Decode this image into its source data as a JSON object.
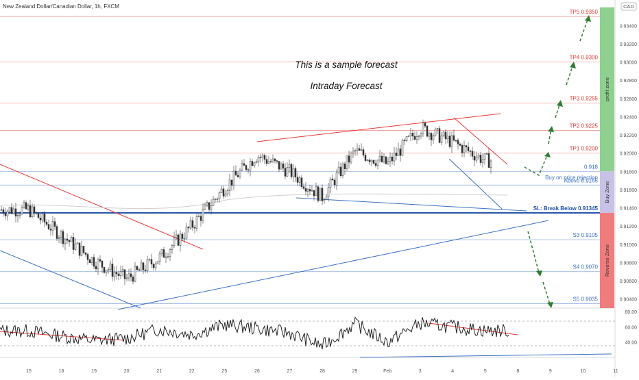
{
  "header": {
    "symbol_title": "New Zealand Dollar/Canadian Dollar, 1h, FXCM",
    "currency_badge": "CAD"
  },
  "annotations": {
    "sample_forecast": "This is a sample forecast",
    "intraday_forecast": "Intraday Forecast",
    "buy_on_rejection": "Buy on price rejection"
  },
  "levels": [
    {
      "label": "TP5 0.9350",
      "value": 0.935,
      "color": "#e53935"
    },
    {
      "label": "TP4 0.9300",
      "value": 0.93,
      "color": "#e53935"
    },
    {
      "label": "TP3 0.9255",
      "value": 0.9255,
      "color": "#e53935"
    },
    {
      "label": "TP2 0.9225",
      "value": 0.9225,
      "color": "#e53935"
    },
    {
      "label": "TP1 0.9200",
      "value": 0.92,
      "color": "#e53935"
    },
    {
      "label": "0.918",
      "value": 0.918,
      "color": "#3a6fc4"
    },
    {
      "label": "Above 0.9165",
      "value": 0.9165,
      "color": "#3a6fc4"
    },
    {
      "label": "SL: Break Below 0.91345",
      "value": 0.91345,
      "color": "#1e4fa8"
    },
    {
      "label": "S3 0.9105",
      "value": 0.9105,
      "color": "#3a6fc4"
    },
    {
      "label": "S4 0.9070",
      "value": 0.907,
      "color": "#3a6fc4"
    },
    {
      "label": "S5 0.9035",
      "value": 0.9035,
      "color": "#3a6fc4"
    }
  ],
  "zones": [
    {
      "label": "profit zone",
      "from": 0.918,
      "to": 0.936,
      "color": "#8fcf8f"
    },
    {
      "label": "Buy Zone",
      "from": 0.91345,
      "to": 0.918,
      "color": "#c8c2e6"
    },
    {
      "label": "Reverse Zone",
      "from": 0.903,
      "to": 0.91345,
      "color": "#ef7d7d"
    }
  ],
  "chart_data": [
    {
      "type": "line",
      "title": "New Zealand Dollar/Canadian Dollar, 1h, FXCM",
      "x_ticks": [
        "15",
        "18",
        "19",
        "20",
        "21",
        "22",
        "25",
        "26",
        "27",
        "28",
        "29",
        "Feb",
        "3",
        "4",
        "5",
        "8",
        "9",
        "10",
        "11"
      ],
      "y_ticks": [
        "0.93400",
        "0.93200",
        "0.93000",
        "0.92800",
        "0.92600",
        "0.92400",
        "0.92200",
        "0.92000",
        "0.91800",
        "0.91600",
        "0.91400",
        "0.91200",
        "0.91000",
        "0.90800",
        "0.90600",
        "0.90400"
      ],
      "ylim": [
        0.903,
        0.9362
      ],
      "series": [
        {
          "x": [
            "15",
            "18",
            "19",
            "20",
            "21",
            "22",
            "25",
            "26",
            "27",
            "28",
            "29",
            "Feb",
            "3",
            "4",
            "5"
          ],
          "values": [
            0.9138,
            0.911,
            0.9082,
            0.9062,
            0.9085,
            0.912,
            0.9162,
            0.9198,
            0.918,
            0.9152,
            0.9202,
            0.9188,
            0.9228,
            0.9212,
            0.9192
          ]
        }
      ]
    },
    {
      "type": "line",
      "title": "",
      "y_ticks": [
        "80.00",
        "60.00",
        "40.00"
      ],
      "ylim": [
        20,
        82
      ],
      "series": [
        {
          "x": [
            "15",
            "18",
            "19",
            "20",
            "21",
            "22",
            "25",
            "26",
            "27",
            "28",
            "29",
            "Feb",
            "3",
            "4",
            "5"
          ],
          "values": [
            55,
            48,
            42,
            45,
            57,
            50,
            63,
            58,
            52,
            35,
            64,
            40,
            65,
            60,
            55
          ]
        }
      ]
    }
  ]
}
